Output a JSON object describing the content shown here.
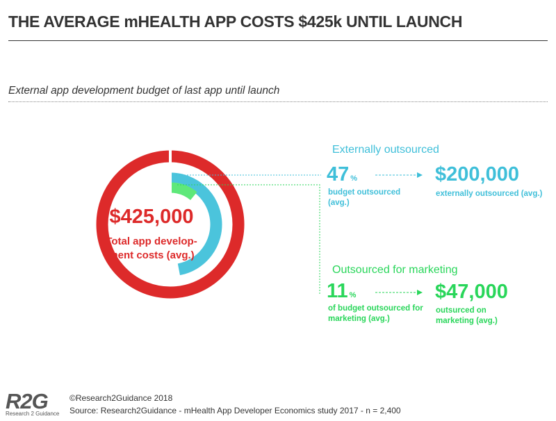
{
  "title": "THE AVERAGE mHEALTH APP COSTS $425k UNTIL LAUNCH",
  "subtitle": "External app development budget of last app until launch",
  "colors": {
    "total": "#dd2a2a",
    "external": "#4bc4dc",
    "marketing": "#5ee87a",
    "text_dark": "#333333"
  },
  "chart_data": {
    "type": "donut",
    "total": {
      "value": 425000,
      "amount_label": "$425,000",
      "label": "Total app development costs (avg.)"
    },
    "series": [
      {
        "name": "Externally outsourced",
        "percent": 47,
        "value": 200000
      },
      {
        "name": "Outsourced for marketing",
        "percent": 11,
        "value": 47000
      }
    ]
  },
  "panels": {
    "external": {
      "heading": "Externally outsourced",
      "percent_number": "47",
      "percent_sign": "%",
      "percent_desc": "budget outsourced (avg.)",
      "amount": "$200,000",
      "amount_desc": "externally outsourced (avg.)"
    },
    "marketing": {
      "heading": "Outsourced for marketing",
      "percent_number": "11",
      "percent_sign": "%",
      "percent_desc": "of budget outsourced for marketing (avg.)",
      "amount": "$47,000",
      "amount_desc": "outsurced on marketing (avg.)"
    }
  },
  "center": {
    "amount": "$425,000",
    "label": "Total app develop-ment costs (avg.)"
  },
  "footer": {
    "logo": "R2G",
    "logo_sub": "Research 2 Guidance",
    "copyright": "©Research2Guidance 2018",
    "source": "Source: Research2Guidance - mHealth App Developer Economics study 2017 - n = 2,400"
  }
}
